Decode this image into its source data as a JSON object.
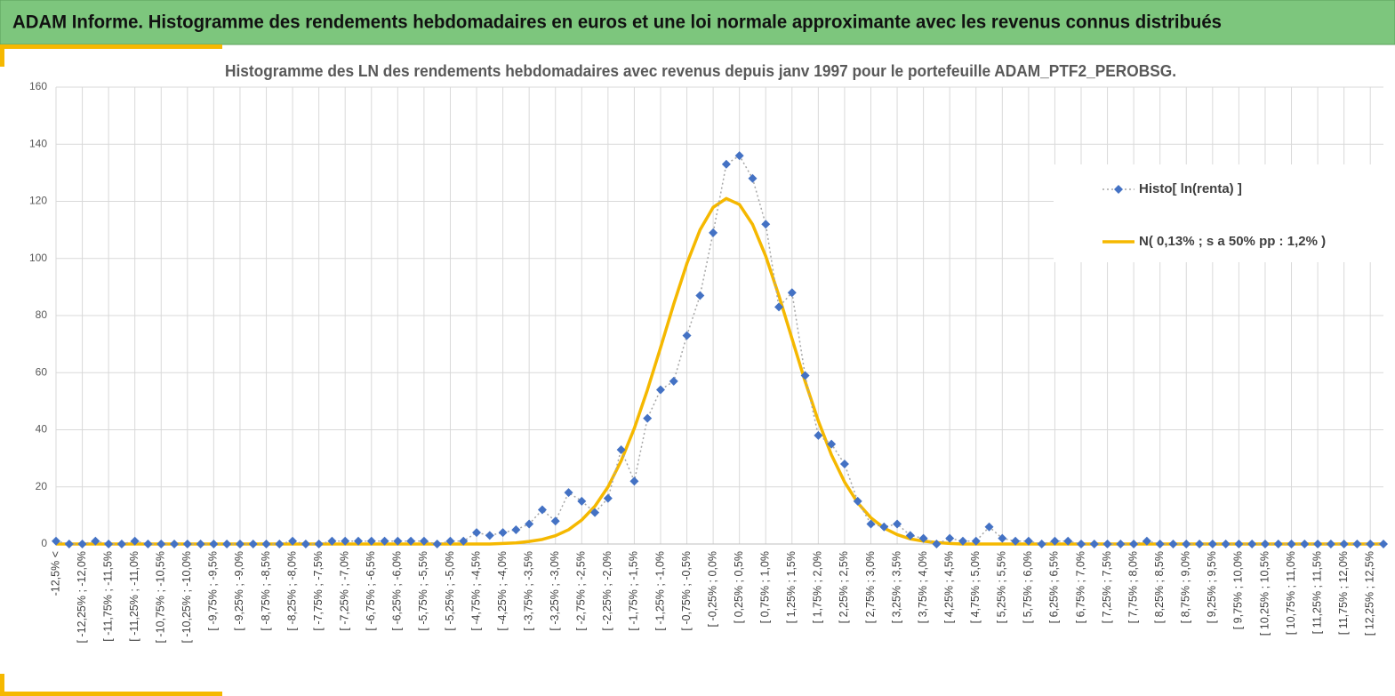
{
  "header": {
    "title": "ADAM Informe. Histogramme des rendements hebdomadaires en euros et une loi normale approximante avec les revenus connus distribués"
  },
  "chart_data": {
    "type": "line",
    "title": "Histogramme des LN des rendements hebdomadaires avec revenus depuis janv 1997 pour le portefeuille ADAM_PTF2_PEROBSG.",
    "categories": [
      "-12,5% <",
      null,
      "[ -12,25% ; -12,0%",
      null,
      "[ -11,75% ; -11,5%",
      null,
      "[ -11,25% ; -11,0%",
      null,
      "[ -10,75% ; -10,5%",
      null,
      "[ -10,25% ; -10,0%",
      null,
      "[ -9,75% ; -9,5%",
      null,
      "[ -9,25% ; -9,0%",
      null,
      "[ -8,75% ; -8,5%",
      null,
      "[ -8,25% ; -8,0%",
      null,
      "[ -7,75% ; -7,5%",
      null,
      "[ -7,25% ; -7,0%",
      null,
      "[ -6,75% ; -6,5%",
      null,
      "[ -6,25% ; -6,0%",
      null,
      "[ -5,75% ; -5,5%",
      null,
      "[ -5,25% ; -5,0%",
      null,
      "[ -4,75% ; -4,5%",
      null,
      "[ -4,25% ; -4,0%",
      null,
      "[ -3,75% ; -3,5%",
      null,
      "[ -3,25% ; -3,0%",
      null,
      "[ -2,75% ; -2,5%",
      null,
      "[ -2,25% ; -2,0%",
      null,
      "[ -1,75% ; -1,5%",
      null,
      "[ -1,25% ; -1,0%",
      null,
      "[ -0,75% ; -0,5%",
      null,
      "[ -0,25% ; 0,0%",
      null,
      "[ 0,25% ; 0,5%",
      null,
      "[ 0,75% ; 1,0%",
      null,
      "[ 1,25% ; 1,5%",
      null,
      "[ 1,75% ; 2,0%",
      null,
      "[ 2,25% ; 2,5%",
      null,
      "[ 2,75% ; 3,0%",
      null,
      "[ 3,25% ; 3,5%",
      null,
      "[ 3,75% ; 4,0%",
      null,
      "[ 4,25% ; 4,5%",
      null,
      "[ 4,75% ; 5,0%",
      null,
      "[ 5,25% ; 5,5%",
      null,
      "[ 5,75% ; 6,0%",
      null,
      "[ 6,25% ; 6,5%",
      null,
      "[ 6,75% ; 7,0%",
      null,
      "[ 7,25% ; 7,5%",
      null,
      "[ 7,75% ; 8,0%",
      null,
      "[ 8,25% ; 8,5%",
      null,
      "[ 8,75% ; 9,0%",
      null,
      "[ 9,25% ; 9,5%",
      null,
      "[ 9,75% ; 10,0%",
      null,
      "[ 10,25% ; 10,5%",
      null,
      "[ 10,75% ; 11,0%",
      null,
      "[ 11,25% ; 11,5%",
      null,
      "[ 11,75% ; 12,0%",
      null,
      "[ 12,25% ; 12,5%",
      null
    ],
    "series": [
      {
        "name": "Histo[ ln(renta) ]",
        "color": "#4472c4",
        "line_color": "#a6a6a6",
        "marker": "diamond",
        "values": [
          1,
          0,
          0,
          1,
          0,
          0,
          1,
          0,
          0,
          0,
          0,
          0,
          0,
          0,
          0,
          0,
          0,
          0,
          1,
          0,
          0,
          1,
          1,
          1,
          1,
          1,
          1,
          1,
          1,
          0,
          1,
          1,
          4,
          3,
          4,
          5,
          7,
          12,
          8,
          18,
          15,
          11,
          16,
          33,
          22,
          44,
          54,
          57,
          73,
          87,
          109,
          133,
          136,
          128,
          112,
          83,
          88,
          59,
          38,
          35,
          28,
          15,
          7,
          6,
          7,
          3,
          2,
          0,
          2,
          1,
          1,
          6,
          2,
          1,
          1,
          0,
          1,
          1,
          0,
          0,
          0,
          0,
          0,
          1,
          0,
          0,
          0,
          0,
          0,
          0,
          0,
          0,
          0,
          0,
          0,
          0,
          0,
          0,
          0,
          0,
          0,
          0
        ]
      },
      {
        "name": "N( 0,13% ; s a 50% pp : 1,2% )",
        "color": "#f5b800",
        "values": [
          0,
          0,
          0,
          0,
          0,
          0,
          0,
          0,
          0,
          0,
          0,
          0,
          0,
          0,
          0,
          0,
          0,
          0,
          0,
          0,
          0,
          0,
          0,
          0,
          0,
          0,
          0,
          0,
          0,
          0,
          0,
          0,
          0,
          0,
          0.2,
          0.4,
          0.9,
          1.6,
          2.9,
          5,
          8.4,
          13.2,
          20,
          29.1,
          40.5,
          54,
          68.8,
          84,
          98.2,
          110,
          117.9,
          121,
          118.9,
          111.9,
          100.8,
          87,
          71.9,
          56.9,
          43.1,
          31.2,
          21.7,
          14.4,
          9.2,
          5.6,
          3.3,
          1.8,
          1,
          0.5,
          0.2,
          0,
          0,
          0,
          0,
          0,
          0,
          0,
          0,
          0,
          0,
          0,
          0,
          0,
          0,
          0,
          0,
          0,
          0,
          0,
          0,
          0,
          0,
          0,
          0,
          0,
          0,
          0,
          0,
          0,
          0,
          0,
          0,
          0
        ]
      }
    ],
    "ylim": [
      0,
      160
    ],
    "yticks": [
      0,
      20,
      40,
      60,
      80,
      100,
      120,
      140,
      160
    ],
    "grid": true,
    "legend": "right"
  }
}
